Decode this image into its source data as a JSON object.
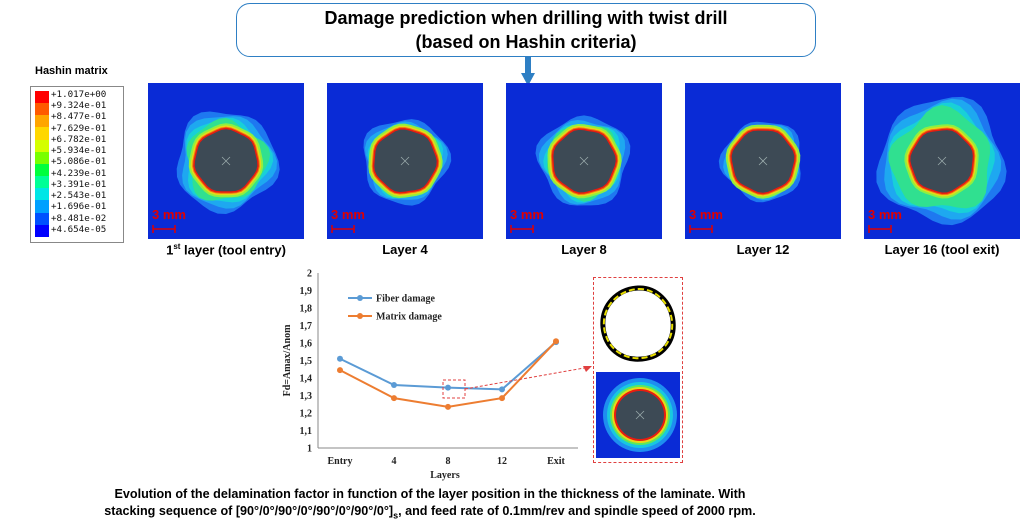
{
  "title": {
    "line1": "Damage prediction when drilling with twist drill",
    "line2": "(based on Hashin criteria)"
  },
  "legend": {
    "title": "Hashin matrix",
    "values": [
      "+1.017e+00",
      "+9.324e-01",
      "+8.477e-01",
      "+7.629e-01",
      "+6.782e-01",
      "+5.934e-01",
      "+5.086e-01",
      "+4.239e-01",
      "+3.391e-01",
      "+2.543e-01",
      "+1.696e-01",
      "+8.481e-02",
      "+4.654e-05"
    ],
    "colors": [
      "#ff0000",
      "#ff5a00",
      "#ffa500",
      "#ffd700",
      "#d4ff00",
      "#78ff00",
      "#00ff3c",
      "#00ff96",
      "#00e6e6",
      "#00a0ff",
      "#0050ff",
      "#0000ff"
    ]
  },
  "panels": [
    {
      "scale": "3 mm",
      "label_main": "1",
      "label_sup": "st",
      "label_rest": " layer (tool entry)"
    },
    {
      "scale": "3 mm",
      "label_main": "Layer 4",
      "label_sup": "",
      "label_rest": ""
    },
    {
      "scale": "3 mm",
      "label_main": "Layer 8",
      "label_sup": "",
      "label_rest": ""
    },
    {
      "scale": "3 mm",
      "label_main": "Layer 12",
      "label_sup": "",
      "label_rest": ""
    },
    {
      "scale": "3 mm",
      "label_main": "Layer 16 (tool exit)",
      "label_sup": "",
      "label_rest": ""
    }
  ],
  "chart_data": {
    "type": "line",
    "categories": [
      "Entry",
      "4",
      "8",
      "12",
      "Exit"
    ],
    "series": [
      {
        "name": "Fiber damage",
        "values": [
          1.51,
          1.36,
          1.345,
          1.335,
          1.605
        ],
        "color": "#5b9bd5"
      },
      {
        "name": "Matrix damage",
        "values": [
          1.445,
          1.285,
          1.235,
          1.285,
          1.61
        ],
        "color": "#ed7d31"
      }
    ],
    "xlabel": "Layers",
    "ylabel": "Fd=Amax/Anom",
    "ylim": [
      1,
      2
    ],
    "yticks": [
      "1",
      "1,1",
      "1,2",
      "1,3",
      "1,4",
      "1,5",
      "1,6",
      "1,7",
      "1,8",
      "1,9",
      "2"
    ],
    "legend_position": "top-left",
    "grid": false
  },
  "caption": {
    "line1": "Evolution of the delamination factor in function of the layer position in the thickness of the laminate. With",
    "line2_a": "stacking sequence of [90°/0°/90°/0°/90°/0°/90°/0°]",
    "line2_sub": "s",
    "line2_b": ", and feed rate of 0.1mm/rev and spindle speed of 2000 rpm."
  }
}
